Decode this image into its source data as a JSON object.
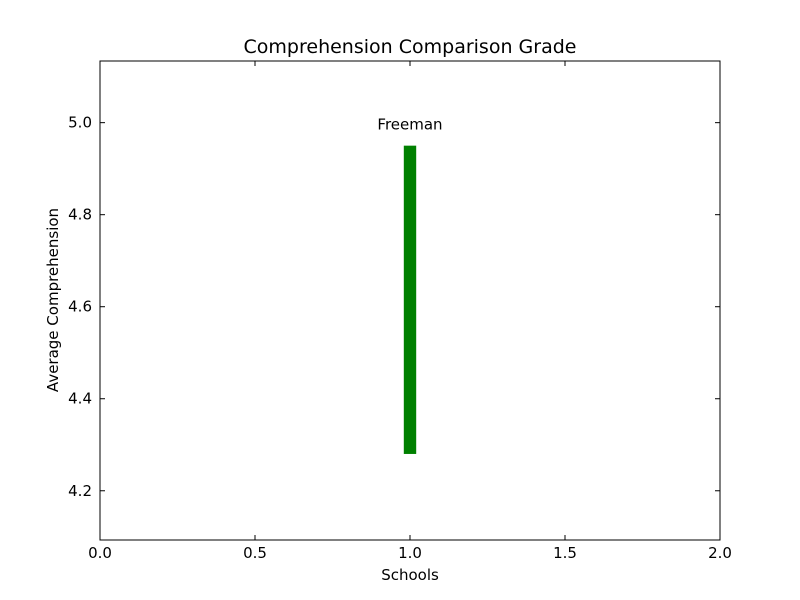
{
  "chart_data": {
    "type": "bar",
    "title": "Comprehension Comparison Grade",
    "xlabel": "Schools",
    "ylabel": "Average Comprehension",
    "xlim": [
      0.0,
      2.0
    ],
    "ylim": [
      4.093,
      5.134
    ],
    "xticks": [
      0.0,
      0.5,
      1.0,
      1.5,
      2.0
    ],
    "xtick_labels": [
      "0.0",
      "0.5",
      "1.0",
      "1.5",
      "2.0"
    ],
    "yticks": [
      4.2,
      4.4,
      4.6,
      4.8,
      5.0
    ],
    "ytick_labels": [
      "4.2",
      "4.4",
      "4.6",
      "4.8",
      "5.0"
    ],
    "grid": false,
    "bars": [
      {
        "label": "Freeman",
        "x": 1.0,
        "width": 0.04,
        "bottom": 4.28,
        "top": 4.95,
        "color": "#008000"
      }
    ]
  }
}
